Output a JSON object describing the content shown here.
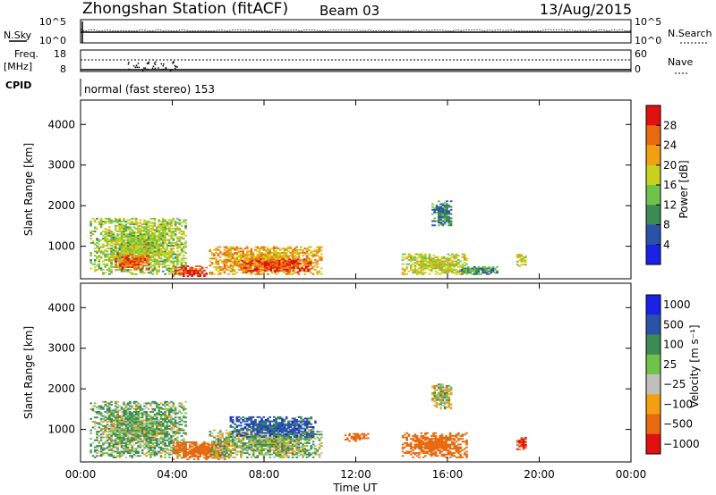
{
  "header": {
    "station": "Zhongshan Station (fitACF)",
    "beam": "Beam 03",
    "date": "13/Aug/2015"
  },
  "sky_panel": {
    "left_label": "N.Sky",
    "left_ticks": [
      "10^5",
      "10^0"
    ],
    "right_label": "N.Search",
    "right_ticks": [
      "10^5",
      "10^0"
    ]
  },
  "freq_panel": {
    "left_label_1": "Freq.",
    "left_label_2": "[MHz]",
    "left_ticks": [
      "18",
      "8"
    ],
    "right_label": "Nave",
    "right_ticks": [
      "60",
      "0"
    ]
  },
  "cpid": {
    "label": "CPID",
    "text": "normal (fast stereo) 153"
  },
  "colors": {
    "power": [
      "#1a22e6",
      "#2a52a8",
      "#3d8a55",
      "#6fc24a",
      "#c8d21e",
      "#f0a010",
      "#e86a10",
      "#e21010"
    ],
    "velocity": [
      "#e21010",
      "#e86a10",
      "#f0a010",
      "#c0c0b8",
      "#6fc24a",
      "#3d8a55",
      "#2a52a8",
      "#1a22e6"
    ]
  },
  "chart_data": [
    {
      "type": "heatmap",
      "panel": "power",
      "ylabel": "Slant Range [km]",
      "yticks": [
        "1000",
        "2000",
        "3000",
        "4000"
      ],
      "ylim": [
        200,
        4600
      ],
      "colorbar_label": "Power [dB]",
      "colorbar_ticks": [
        "4",
        "8",
        "12",
        "16",
        "20",
        "24",
        "28"
      ],
      "clim": [
        0,
        32
      ],
      "regions": [
        {
          "t": [
            0.4,
            4.6
          ],
          "r": [
            300,
            1700
          ],
          "level": 16
        },
        {
          "t": [
            1.5,
            3.0
          ],
          "r": [
            400,
            800
          ],
          "level": 26
        },
        {
          "t": [
            4.0,
            5.5
          ],
          "r": [
            250,
            500
          ],
          "level": 28
        },
        {
          "t": [
            5.6,
            10.5
          ],
          "r": [
            300,
            1000
          ],
          "level": 22
        },
        {
          "t": [
            7.0,
            10.0
          ],
          "r": [
            350,
            700
          ],
          "level": 28
        },
        {
          "t": [
            14.0,
            16.8
          ],
          "r": [
            300,
            800
          ],
          "level": 18
        },
        {
          "t": [
            15.3,
            16.2
          ],
          "r": [
            1500,
            2100
          ],
          "level": 9
        },
        {
          "t": [
            19.0,
            19.4
          ],
          "r": [
            500,
            800
          ],
          "level": 18
        },
        {
          "t": [
            16.5,
            18.2
          ],
          "r": [
            300,
            500
          ],
          "level": 10
        }
      ]
    },
    {
      "type": "heatmap",
      "panel": "velocity",
      "ylabel": "Slant Range [km]",
      "yticks": [
        "1000",
        "2000",
        "3000",
        "4000"
      ],
      "ylim": [
        200,
        4600
      ],
      "xlabel": "Time UT",
      "xticks": [
        "00:00",
        "04:00",
        "08:00",
        "12:00",
        "16:00",
        "20:00",
        "00:00"
      ],
      "xlim": [
        0,
        24
      ],
      "colorbar_label": "Velocity [m s⁻¹]",
      "colorbar_ticks": [
        "1000",
        "500",
        "100",
        "25",
        "−25",
        "−100",
        "−500",
        "−1000"
      ],
      "regions": [
        {
          "t": [
            0.4,
            4.6
          ],
          "r": [
            300,
            1700
          ],
          "vel": 100
        },
        {
          "t": [
            4.0,
            6.5
          ],
          "r": [
            250,
            700
          ],
          "vel": -300
        },
        {
          "t": [
            5.6,
            10.5
          ],
          "r": [
            300,
            1000
          ],
          "vel": 60
        },
        {
          "t": [
            6.5,
            10.2
          ],
          "r": [
            800,
            1300
          ],
          "vel": 700
        },
        {
          "t": [
            11.5,
            12.5
          ],
          "r": [
            700,
            900
          ],
          "vel": -300
        },
        {
          "t": [
            14.0,
            16.8
          ],
          "r": [
            300,
            900
          ],
          "vel": -200
        },
        {
          "t": [
            15.3,
            16.2
          ],
          "r": [
            1500,
            2100
          ],
          "vel": 10
        },
        {
          "t": [
            19.0,
            19.4
          ],
          "r": [
            500,
            800
          ],
          "vel": -500
        }
      ]
    }
  ]
}
